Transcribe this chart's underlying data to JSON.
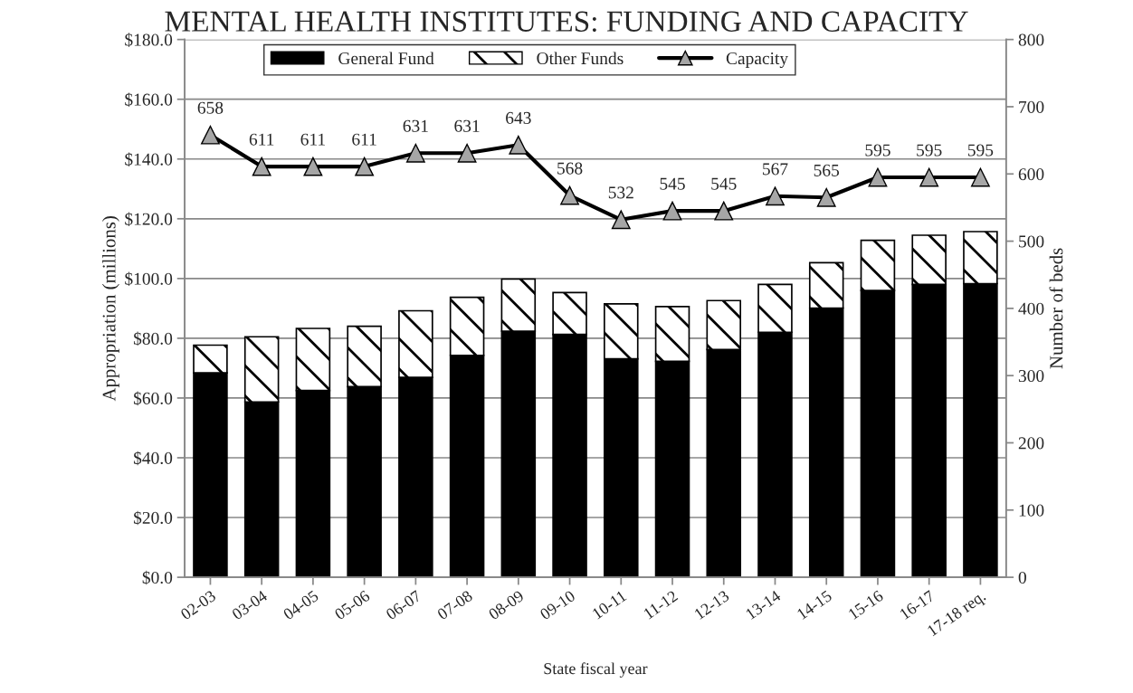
{
  "chart_data": {
    "type": "bar",
    "title": "MENTAL HEALTH INSTITUTES: FUNDING AND CAPACITY",
    "xlabel": "State fiscal year",
    "ylabel": "Appropriation (millions)",
    "y2label": "Number of beds",
    "categories": [
      "02-03",
      "03-04",
      "04-05",
      "05-06",
      "06-07",
      "07-08",
      "08-09",
      "09-10",
      "10-11",
      "11-12",
      "12-13",
      "13-14",
      "14-15",
      "15-16",
      "16-17",
      "17-18 req."
    ],
    "stacked": true,
    "series": [
      {
        "name": "General Fund",
        "color": "#000000",
        "values": [
          68.4,
          58.7,
          62.5,
          63.8,
          66.9,
          74.3,
          82.4,
          81.3,
          73.1,
          72.3,
          76.2,
          82.0,
          90.1,
          96.0,
          98.0,
          98.3
        ]
      },
      {
        "name": "Other Funds",
        "color": "#ffffff",
        "values": [
          9.3,
          21.8,
          20.8,
          20.2,
          22.3,
          19.4,
          17.4,
          14.0,
          18.4,
          18.3,
          16.4,
          16.0,
          15.2,
          16.8,
          16.5,
          17.4
        ]
      },
      {
        "name": "Capacity",
        "type": "line",
        "axis": "y2",
        "color": "#000000",
        "marker": "triangle",
        "data_labels": true,
        "values": [
          658,
          611,
          611,
          611,
          631,
          631,
          643,
          568,
          532,
          545,
          545,
          567,
          565,
          595,
          595,
          595
        ]
      }
    ],
    "ylim": [
      0,
      180
    ],
    "yticks": [
      {
        "value": 0,
        "label": "$0.0"
      },
      {
        "value": 20,
        "label": "$20.0"
      },
      {
        "value": 40,
        "label": "$40.0"
      },
      {
        "value": 60,
        "label": "$60.0"
      },
      {
        "value": 80,
        "label": "$80.0"
      },
      {
        "value": 100,
        "label": "$100.0"
      },
      {
        "value": 120,
        "label": "$120.0"
      },
      {
        "value": 140,
        "label": "$140.0"
      },
      {
        "value": 160,
        "label": "$160.0"
      },
      {
        "value": 180,
        "label": "$180.0"
      }
    ],
    "y2lim": [
      0,
      800
    ],
    "y2ticks": [
      0,
      100,
      200,
      300,
      400,
      500,
      600,
      700,
      800
    ],
    "grid": "y",
    "legend": "top"
  }
}
